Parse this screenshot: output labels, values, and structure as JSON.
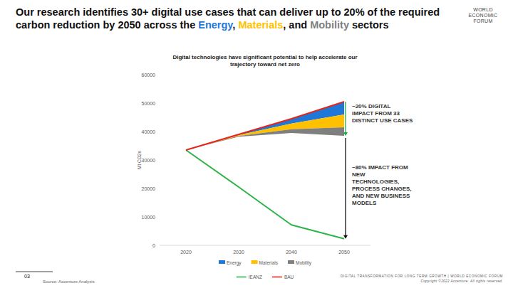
{
  "chart_data": {
    "type": "area",
    "title": "Digital technologies have significant potential to help accelerate our trajectory toward net zero",
    "y_label": "Mt CO2e",
    "x": [
      2020,
      2030,
      2040,
      2050
    ],
    "xlim": [
      2015,
      2055
    ],
    "xticks": [
      2020,
      2030,
      2040,
      2050
    ],
    "ylim": [
      0,
      60000
    ],
    "yticks": [
      0,
      10000,
      20000,
      30000,
      40000,
      50000,
      60000
    ],
    "grid": false,
    "stacked": true,
    "legend": "bottom",
    "series": [
      {
        "name": "Energy",
        "type": "area",
        "color": "#1f77d8",
        "values": [
          0,
          250,
          1700,
          4500
        ]
      },
      {
        "name": "Materials",
        "type": "area",
        "color": "#ffc000",
        "values": [
          0,
          300,
          2000,
          4500
        ]
      },
      {
        "name": "Mobility",
        "type": "area",
        "color": "#7f7f7f",
        "values": [
          0,
          250,
          1300,
          3000
        ]
      },
      {
        "name": "IEANZ",
        "type": "line",
        "color": "#2eb34a",
        "values": [
          33500,
          20500,
          7200,
          2300
        ]
      },
      {
        "name": "BAU",
        "type": "line",
        "color": "#e3261c",
        "values": [
          33500,
          39000,
          44500,
          50500
        ]
      }
    ],
    "annotations": [
      "~20% DIGITAL IMPACT FROM 33 DISTINCT USE CASES",
      "~80% IMPACT FROM NEW TECHNOLOGIES, PROCESS CHANGES, AND NEW BUSINESS MODELS"
    ]
  },
  "page": {
    "headline": "Our research identifies 30+ digital use cases that can deliver up to 20% of the required carbon reduction by 2050 across the Energy, Materials, and Mobility sectors",
    "logo": [
      "WORLD",
      "ECONOMIC",
      "FORUM"
    ],
    "number": "03",
    "source": "Source: Accenture Analysis",
    "footer": "DIGITAL TRANSFORMATION FOR LONG TERM GROWTH | WORLD ECONOMIC FORUM",
    "copyright": "Copyright ©2022 Accenture. All rights reserved."
  }
}
